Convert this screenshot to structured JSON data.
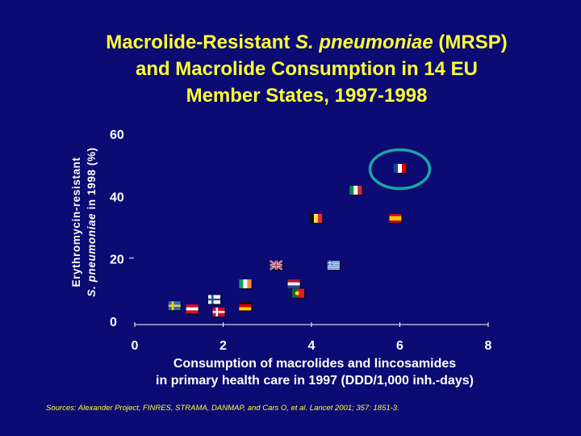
{
  "title": {
    "line1_prefix": "Macrolide-Resistant ",
    "line1_italic": "S. pneumoniae",
    "line1_suffix": " (MRSP)",
    "line2": "and Macrolide Consumption in 14 EU",
    "line3": "Member States, 1997-1998"
  },
  "axes": {
    "ylabel_line1": "Erythromycin-resistant",
    "ylabel_line2_italic": "S. pneumoniae",
    "ylabel_line2_suffix": " in 1998 (%)",
    "xlabel_line1": "Consumption of macrolides and lincosamides",
    "xlabel_line2": "in primary health care in 1997 (DDD/1,000 inh.-days)"
  },
  "source": "Sources: Alexander Project, FINRES, STRAMA, DANMAP, and Cars O, et al. Lancet 2001; 357: 1851-3.",
  "chart_data": {
    "type": "scatter",
    "title": "Macrolide-Resistant S. pneumoniae (MRSP) and Macrolide Consumption in 14 EU Member States, 1997-1998",
    "xlabel": "Consumption of macrolides and lincosamides in primary health care in 1997 (DDD/1,000 inh.-days)",
    "ylabel": "Erythromycin-resistant S. pneumoniae in 1998 (%)",
    "xlim": [
      0,
      8
    ],
    "ylim": [
      0,
      60
    ],
    "xticks": [
      "0",
      "2",
      "4",
      "6",
      "8"
    ],
    "yticks": [
      "0",
      "20",
      "40",
      "60"
    ],
    "highlight": {
      "x": 6.0,
      "y": 49,
      "color": "#1aa6a6"
    },
    "points": [
      {
        "x": 0.9,
        "y": 5,
        "flag": "sweden"
      },
      {
        "x": 1.3,
        "y": 4,
        "flag": "austria"
      },
      {
        "x": 1.8,
        "y": 7,
        "flag": "finland"
      },
      {
        "x": 1.9,
        "y": 3,
        "flag": "denmark"
      },
      {
        "x": 2.5,
        "y": 12,
        "flag": "ireland"
      },
      {
        "x": 2.5,
        "y": 5,
        "flag": "germany"
      },
      {
        "x": 3.2,
        "y": 18,
        "flag": "united-kingdom"
      },
      {
        "x": 3.6,
        "y": 12,
        "flag": "netherlands"
      },
      {
        "x": 3.7,
        "y": 9,
        "flag": "portugal"
      },
      {
        "x": 4.5,
        "y": 18,
        "flag": "greece"
      },
      {
        "x": 4.1,
        "y": 33,
        "flag": "belgium"
      },
      {
        "x": 5.0,
        "y": 42,
        "flag": "italy"
      },
      {
        "x": 5.9,
        "y": 33,
        "flag": "spain"
      },
      {
        "x": 6.0,
        "y": 49,
        "flag": "france"
      }
    ]
  }
}
